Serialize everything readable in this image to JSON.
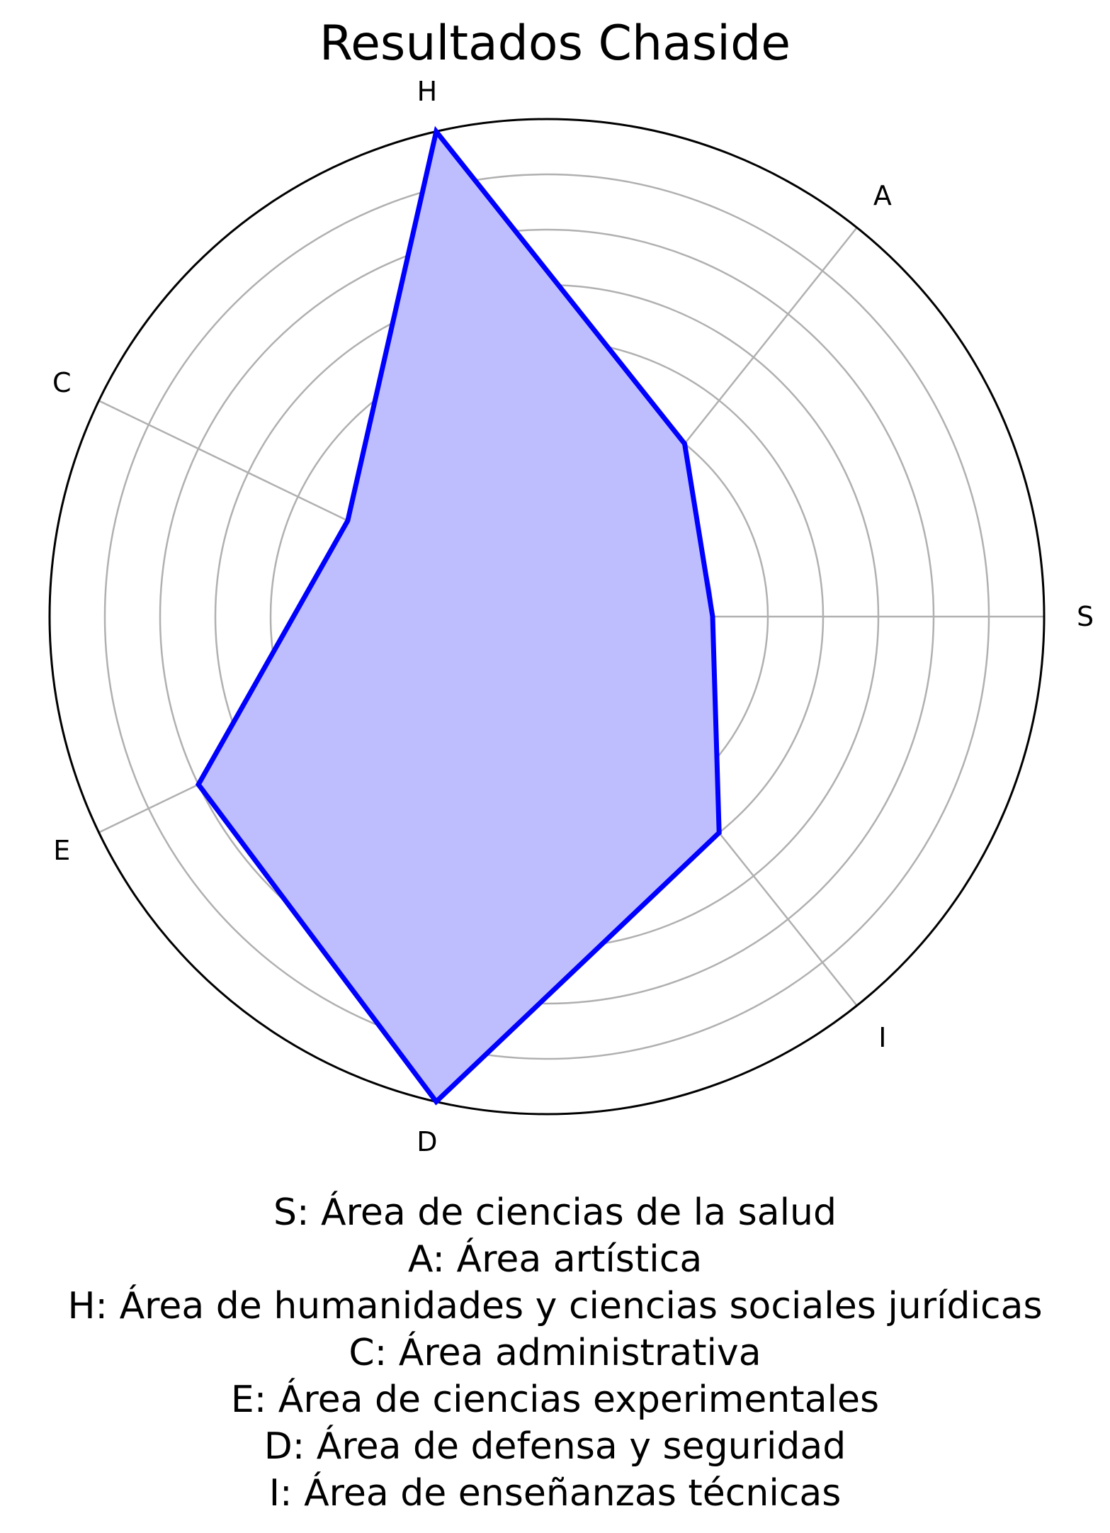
{
  "chart_data": {
    "type": "radar",
    "title": "Resultados Chaside",
    "categories": [
      "S",
      "A",
      "H",
      "C",
      "E",
      "D",
      "I"
    ],
    "values": [
      3,
      4,
      9,
      4,
      7,
      9,
      5
    ],
    "rlim": [
      0,
      9
    ],
    "ring_count": 9,
    "grid": true,
    "series_color": "#0000ff",
    "fill_color": "#bebeff",
    "legend": [
      "S: Área de ciencias de la salud",
      "A: Área artística",
      "H: Área de humanidades y ciencias sociales jurídicas",
      "C: Área administrativa",
      "E: Área de ciencias experimentales",
      "D: Área de defensa y seguridad",
      "I: Área de enseñanzas técnicas"
    ]
  }
}
